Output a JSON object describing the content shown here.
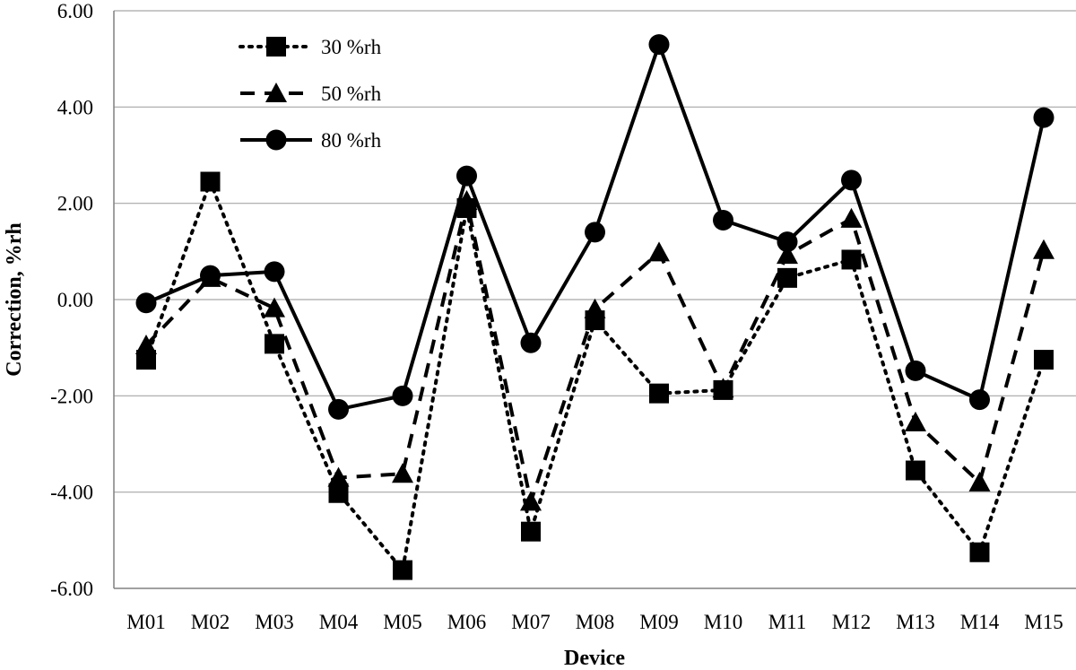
{
  "chart_data": {
    "type": "line",
    "title": "",
    "xlabel": "Device",
    "ylabel": "Correction, %rh",
    "ylim": [
      -6,
      6
    ],
    "ytick_step": 2,
    "ytick_labels": [
      "-6.00",
      "-4.00",
      "-2.00",
      "0.00",
      "2.00",
      "4.00",
      "6.00"
    ],
    "grid": "horizontal",
    "legend_position": "top-left",
    "categories": [
      "M01",
      "M02",
      "M03",
      "M04",
      "M05",
      "M06",
      "M07",
      "M08",
      "M09",
      "M10",
      "M11",
      "M12",
      "M13",
      "M14",
      "M15"
    ],
    "series": [
      {
        "name": "30 %rh",
        "line_style": "dotted",
        "marker": "square",
        "color": "#000000",
        "values": [
          -1.25,
          2.45,
          -0.92,
          -4.02,
          -5.62,
          1.9,
          -4.82,
          -0.43,
          -1.95,
          -1.88,
          0.45,
          0.83,
          -3.55,
          -5.25,
          -1.25
        ]
      },
      {
        "name": "50 %rh",
        "line_style": "dashed",
        "marker": "triangle",
        "color": "#000000",
        "values": [
          -0.95,
          0.45,
          -0.18,
          -3.7,
          -3.62,
          2.05,
          -4.2,
          -0.2,
          0.98,
          -1.85,
          0.93,
          1.68,
          -2.55,
          -3.8,
          1.03
        ]
      },
      {
        "name": "80 %rh",
        "line_style": "solid",
        "marker": "circle",
        "color": "#000000",
        "values": [
          -0.07,
          0.5,
          0.58,
          -2.28,
          -2.0,
          2.57,
          -0.9,
          1.4,
          5.3,
          1.65,
          1.2,
          2.48,
          -1.48,
          -2.08,
          3.78
        ]
      }
    ]
  }
}
